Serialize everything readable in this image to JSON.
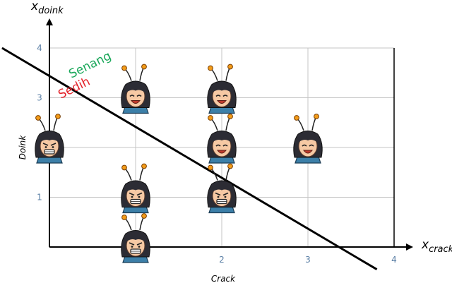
{
  "chart_data": {
    "type": "scatter",
    "x_axis": {
      "symbol": "x",
      "subscript": "crack",
      "label": "Crack",
      "ticks": [
        {
          "value": 2,
          "label": "2"
        },
        {
          "value": 3,
          "label": "3"
        },
        {
          "value": 4,
          "label": "4"
        }
      ],
      "range": [
        0,
        4
      ]
    },
    "y_axis": {
      "symbol": "x",
      "subscript": "doink",
      "label": "Doink",
      "ticks": [
        {
          "value": 1,
          "label": "1"
        },
        {
          "value": 3,
          "label": "3"
        },
        {
          "value": 4,
          "label": "4"
        }
      ],
      "range": [
        0,
        4
      ]
    },
    "grid": true,
    "series": [
      {
        "name": "Senang",
        "color": "#1aa85a",
        "points": [
          [
            1,
            3
          ],
          [
            2,
            3
          ],
          [
            2,
            2
          ],
          [
            3,
            2
          ]
        ]
      },
      {
        "name": "Sedih",
        "color": "#e4252d",
        "points": [
          [
            0,
            2
          ],
          [
            1,
            1
          ],
          [
            2,
            1
          ],
          [
            1,
            0
          ]
        ]
      }
    ],
    "decision_boundary": {
      "from": [
        -0.55,
        4.0
      ],
      "to": [
        3.8,
        -0.45
      ],
      "color": "#000000"
    }
  }
}
